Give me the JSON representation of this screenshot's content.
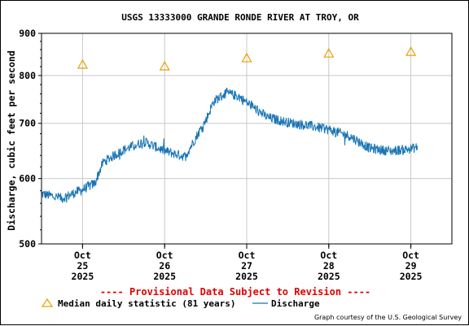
{
  "chart_data": {
    "type": "line",
    "title": "USGS 13333000 GRANDE RONDE RIVER AT TROY, OR",
    "ylabel": "Discharge, cubic feet per second",
    "xlabel": "",
    "ylim": [
      500,
      900
    ],
    "y_scale": "log",
    "y_ticks": [
      "900",
      "800",
      "700",
      "600",
      "500"
    ],
    "x_ticks": [
      {
        "line1": "Oct",
        "line2": "25",
        "line3": "2025"
      },
      {
        "line1": "Oct",
        "line2": "26",
        "line3": "2025"
      },
      {
        "line1": "Oct",
        "line2": "27",
        "line3": "2025"
      },
      {
        "line1": "Oct",
        "line2": "28",
        "line3": "2025"
      },
      {
        "line1": "Oct",
        "line2": "29",
        "line3": "2025"
      }
    ],
    "grid": true,
    "series": [
      {
        "name": "Discharge",
        "color": "#1874b4",
        "x_day": [
          24.5,
          24.75,
          25.0,
          25.15,
          25.25,
          25.5,
          25.75,
          26.0,
          26.25,
          26.5,
          26.6,
          26.75,
          26.9,
          27.0,
          27.25,
          27.5,
          27.75,
          28.0,
          28.25,
          28.5,
          28.75,
          29.0,
          29.08
        ],
        "values": [
          575,
          568,
          582,
          592,
          628,
          650,
          665,
          648,
          638,
          705,
          745,
          762,
          755,
          742,
          712,
          702,
          696,
          688,
          676,
          653,
          648,
          652,
          655
        ]
      },
      {
        "name": "Median daily statistic (81 years)",
        "color": "#e8a000",
        "marker": "triangle",
        "x_day": [
          25,
          26,
          27,
          28,
          29
        ],
        "values": [
          824,
          820,
          839,
          850,
          854
        ]
      }
    ]
  },
  "legend": {
    "median_label": "Median daily statistic (81 years)",
    "discharge_label": "Discharge"
  },
  "provisional": "---- Provisional Data Subject to Revision ----",
  "credit": "Graph courtesy of the U.S. Geological Survey"
}
